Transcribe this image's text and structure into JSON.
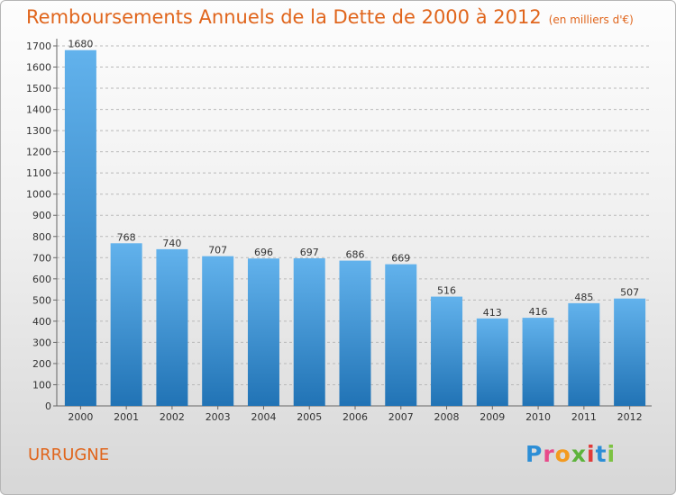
{
  "header": {
    "title": "Remboursements Annuels de la Dette de 2000 à 2012",
    "unit": "(en milliers d'€)"
  },
  "commune": "URRUGNE",
  "logo": {
    "text": "Proxiti",
    "letters": [
      "P",
      "r",
      "o",
      "x",
      "i",
      "t",
      "i"
    ],
    "colors": [
      "#2c8ed6",
      "#e84a8a",
      "#f39a1f",
      "#5db33c",
      "#e03a3a",
      "#2c8ed6",
      "#7cc242"
    ]
  },
  "colors": {
    "accent": "#e0651c",
    "bar_top": "#62b2ec",
    "bar_bottom": "#2173b5",
    "grid": "#b9b9b9"
  },
  "chart_data": {
    "type": "bar",
    "categories": [
      "2000",
      "2001",
      "2002",
      "2003",
      "2004",
      "2005",
      "2006",
      "2007",
      "2008",
      "2009",
      "2010",
      "2011",
      "2012"
    ],
    "values": [
      1680,
      768,
      740,
      707,
      696,
      697,
      686,
      669,
      516,
      413,
      416,
      485,
      507
    ],
    "title": "Remboursements Annuels de la Dette de 2000 à 2012",
    "xlabel": "",
    "ylabel": "",
    "ylim": [
      0,
      1700
    ],
    "ytick_step": 100,
    "grid": true,
    "data_labels": true
  }
}
